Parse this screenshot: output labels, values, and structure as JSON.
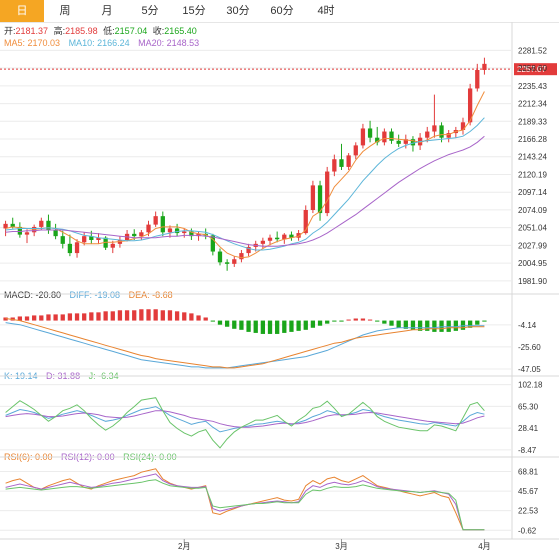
{
  "tabs": [
    {
      "label": "日",
      "active": true
    },
    {
      "label": "周",
      "active": false
    },
    {
      "label": "月",
      "active": false
    },
    {
      "label": "5分",
      "active": false
    },
    {
      "label": "15分",
      "active": false
    },
    {
      "label": "30分",
      "active": false
    },
    {
      "label": "60分",
      "active": false
    },
    {
      "label": "4时",
      "active": false
    }
  ],
  "colors": {
    "up": "#e23b3b",
    "down": "#1aa51a",
    "ma5": "#f08d3c",
    "ma10": "#5db6d9",
    "ma20": "#a865c9",
    "dif": "#5aa8d8",
    "dea": "#e8832f",
    "grid": "#ececec",
    "text": "#333333"
  },
  "ohlc": {
    "open_label": "开:",
    "open": "2181.37",
    "high_label": "高:",
    "high": "2185.98",
    "low_label": "低:",
    "low": "2157.04",
    "close_label": "收:",
    "close": "2165.40"
  },
  "ma": {
    "ma5_label": "MA5: 2170.03",
    "ma10_label": "MA10: 2166.24",
    "ma20_label": "MA20: 2148.53"
  },
  "macd_legend": {
    "macd": "MACD: -20.80",
    "dif": "DIFF: -19.08",
    "dea": "DEA: -8.68"
  },
  "kdj_legend": {
    "k": "K: 19.14",
    "d": "D: 31.88",
    "j": "J: -6.34"
  },
  "rsi_legend": {
    "rsi6": "RSI(6): 0.00",
    "rsi12": "RSI(12): 0.00",
    "rsi24": "RSI(24): 0.00"
  },
  "current_price": "2257.07",
  "chart_data": [
    {
      "type": "candlestick",
      "name": "price",
      "ylim": [
        1970,
        2295
      ],
      "yticks": [
        "2281.52",
        "2258.60",
        "2235.43",
        "2212.34",
        "2189.33",
        "2166.28",
        "2143.24",
        "2120.19",
        "2097.14",
        "2074.09",
        "2051.04",
        "2027.99",
        "2004.95",
        "1981.90"
      ],
      "xticks": [
        "2月",
        "3月",
        "4月"
      ],
      "candles": [
        [
          2050,
          2060,
          2040,
          2056
        ],
        [
          2056,
          2064,
          2050,
          2052
        ],
        [
          2052,
          2058,
          2038,
          2042
        ],
        [
          2042,
          2049,
          2031,
          2045
        ],
        [
          2045,
          2055,
          2040,
          2052
        ],
        [
          2052,
          2064,
          2048,
          2060
        ],
        [
          2060,
          2068,
          2043,
          2048
        ],
        [
          2048,
          2056,
          2036,
          2040
        ],
        [
          2040,
          2047,
          2024,
          2030
        ],
        [
          2030,
          2042,
          2014,
          2018
        ],
        [
          2018,
          2036,
          2012,
          2032
        ],
        [
          2032,
          2045,
          2028,
          2040
        ],
        [
          2040,
          2047,
          2030,
          2035
        ],
        [
          2035,
          2044,
          2030,
          2038
        ],
        [
          2038,
          2040,
          2022,
          2025
        ],
        [
          2025,
          2034,
          2018,
          2030
        ],
        [
          2030,
          2040,
          2025,
          2035
        ],
        [
          2035,
          2048,
          2033,
          2043
        ],
        [
          2043,
          2049,
          2035,
          2040
        ],
        [
          2040,
          2048,
          2035,
          2045
        ],
        [
          2045,
          2060,
          2040,
          2055
        ],
        [
          2055,
          2072,
          2052,
          2066
        ],
        [
          2066,
          2072,
          2040,
          2045
        ],
        [
          2045,
          2054,
          2038,
          2050
        ],
        [
          2050,
          2056,
          2040,
          2044
        ],
        [
          2044,
          2050,
          2038,
          2046
        ],
        [
          2046,
          2050,
          2035,
          2040
        ],
        [
          2040,
          2046,
          2034,
          2043
        ],
        [
          2043,
          2050,
          2036,
          2041
        ],
        [
          2041,
          2043,
          2015,
          2020
        ],
        [
          2020,
          2024,
          2002,
          2006
        ],
        [
          2006,
          2010,
          1995,
          2004
        ],
        [
          2004,
          2014,
          2000,
          2010
        ],
        [
          2010,
          2022,
          2006,
          2018
        ],
        [
          2018,
          2030,
          2014,
          2026
        ],
        [
          2026,
          2034,
          2020,
          2030
        ],
        [
          2030,
          2038,
          2024,
          2034
        ],
        [
          2034,
          2042,
          2028,
          2038
        ],
        [
          2038,
          2046,
          2032,
          2036
        ],
        [
          2036,
          2044,
          2030,
          2042
        ],
        [
          2042,
          2046,
          2034,
          2038
        ],
        [
          2038,
          2048,
          2034,
          2044
        ],
        [
          2044,
          2080,
          2042,
          2074
        ],
        [
          2074,
          2112,
          2070,
          2106
        ],
        [
          2106,
          2112,
          2060,
          2070
        ],
        [
          2070,
          2130,
          2066,
          2124
        ],
        [
          2124,
          2146,
          2118,
          2140
        ],
        [
          2140,
          2160,
          2126,
          2130
        ],
        [
          2130,
          2148,
          2126,
          2145
        ],
        [
          2145,
          2162,
          2140,
          2158
        ],
        [
          2158,
          2186,
          2154,
          2180
        ],
        [
          2180,
          2190,
          2162,
          2168
        ],
        [
          2168,
          2182,
          2158,
          2162
        ],
        [
          2162,
          2180,
          2158,
          2176
        ],
        [
          2176,
          2180,
          2160,
          2164
        ],
        [
          2164,
          2172,
          2156,
          2160
        ],
        [
          2160,
          2172,
          2154,
          2166
        ],
        [
          2166,
          2170,
          2150,
          2158
        ],
        [
          2158,
          2174,
          2152,
          2168
        ],
        [
          2168,
          2182,
          2162,
          2176
        ],
        [
          2176,
          2224,
          2168,
          2184
        ],
        [
          2184,
          2188,
          2162,
          2168
        ],
        [
          2168,
          2178,
          2162,
          2174
        ],
        [
          2174,
          2182,
          2168,
          2178
        ],
        [
          2178,
          2194,
          2172,
          2188
        ],
        [
          2188,
          2238,
          2184,
          2232
        ],
        [
          2232,
          2264,
          2228,
          2256
        ],
        [
          2256,
          2272,
          2250,
          2264
        ]
      ],
      "ma5": [
        2050,
        2052,
        2051,
        2050,
        2049,
        2050,
        2051,
        2050,
        2045,
        2040,
        2034,
        2030,
        2030,
        2030,
        2032,
        2032,
        2033,
        2034,
        2037,
        2039,
        2043,
        2050,
        2052,
        2052,
        2052,
        2050,
        2045,
        2043,
        2042,
        2036,
        2026,
        2018,
        2014,
        2012,
        2013,
        2018,
        2024,
        2029,
        2033,
        2036,
        2038,
        2040,
        2048,
        2066,
        2072,
        2086,
        2104,
        2114,
        2124,
        2139,
        2150,
        2157,
        2163,
        2167,
        2167,
        2166,
        2165,
        2164,
        2162,
        2165,
        2170,
        2172,
        2172,
        2176,
        2178,
        2190,
        2210,
        2228
      ],
      "ma10": [
        2048,
        2049,
        2050,
        2050,
        2050,
        2050,
        2051,
        2050,
        2049,
        2047,
        2044,
        2041,
        2040,
        2038,
        2037,
        2036,
        2035,
        2034,
        2034,
        2035,
        2037,
        2040,
        2042,
        2044,
        2046,
        2047,
        2047,
        2046,
        2045,
        2042,
        2038,
        2034,
        2030,
        2027,
        2024,
        2022,
        2022,
        2023,
        2025,
        2027,
        2030,
        2032,
        2036,
        2044,
        2050,
        2058,
        2068,
        2078,
        2088,
        2100,
        2112,
        2122,
        2132,
        2141,
        2148,
        2154,
        2158,
        2161,
        2163,
        2164,
        2165,
        2166,
        2167,
        2168,
        2170,
        2176,
        2184,
        2194
      ],
      "ma20": [
        2045,
        2046,
        2046,
        2047,
        2047,
        2048,
        2048,
        2048,
        2048,
        2047,
        2046,
        2045,
        2044,
        2043,
        2042,
        2041,
        2040,
        2039,
        2038,
        2038,
        2038,
        2038,
        2039,
        2040,
        2040,
        2041,
        2041,
        2041,
        2040,
        2039,
        2037,
        2035,
        2033,
        2031,
        2029,
        2028,
        2027,
        2027,
        2027,
        2028,
        2029,
        2030,
        2032,
        2035,
        2039,
        2044,
        2050,
        2056,
        2062,
        2068,
        2075,
        2082,
        2089,
        2096,
        2103,
        2110,
        2116,
        2122,
        2128,
        2133,
        2138,
        2142,
        2146,
        2149,
        2152,
        2156,
        2162,
        2170
      ]
    },
    {
      "type": "bar",
      "name": "MACD",
      "ylim": [
        -50,
        20
      ],
      "yticks": [
        "-4.14",
        "-25.60",
        "-47.05"
      ],
      "macd": [
        3,
        3,
        4,
        4,
        5,
        5,
        6,
        6,
        6,
        7,
        7,
        7,
        8,
        8,
        9,
        9,
        10,
        10,
        10,
        11,
        11,
        11,
        10,
        10,
        9,
        8,
        7,
        5,
        3,
        -1,
        -4,
        -6,
        -8,
        -9,
        -11,
        -12,
        -13,
        -13,
        -13,
        -12,
        -11,
        -10,
        -9,
        -7,
        -5,
        -3,
        -1,
        -1,
        1,
        2,
        2,
        1,
        -1,
        -3,
        -5,
        -7,
        -8,
        -9,
        -10,
        -10,
        -11,
        -11,
        -11,
        -10,
        -9,
        -7,
        -4,
        -1
      ],
      "dif": [
        -2,
        -3,
        -4,
        -6,
        -8,
        -10,
        -12,
        -14,
        -16,
        -18,
        -20,
        -22,
        -24,
        -26,
        -28,
        -30,
        -32,
        -34,
        -36,
        -38,
        -39,
        -40,
        -41,
        -42,
        -43,
        -44,
        -45,
        -45,
        -46,
        -46,
        -46,
        -46,
        -45,
        -44,
        -43,
        -42,
        -41,
        -40,
        -39,
        -38,
        -37,
        -36,
        -35,
        -33,
        -31,
        -29,
        -26,
        -23,
        -20,
        -17,
        -14,
        -12,
        -10,
        -9,
        -8,
        -7,
        -7,
        -7,
        -7,
        -7,
        -7,
        -6,
        -6,
        -6,
        -5,
        -5,
        -5,
        -5
      ],
      "dea": [
        2,
        1,
        0,
        -2,
        -4,
        -6,
        -8,
        -10,
        -12,
        -14,
        -16,
        -18,
        -20,
        -22,
        -24,
        -26,
        -28,
        -30,
        -32,
        -34,
        -35,
        -37,
        -38,
        -39,
        -40,
        -41,
        -42,
        -43,
        -44,
        -45,
        -45,
        -46,
        -46,
        -45,
        -44,
        -43,
        -42,
        -40,
        -38,
        -36,
        -34,
        -32,
        -30,
        -28,
        -26,
        -24,
        -22,
        -21,
        -19,
        -17,
        -16,
        -15,
        -14,
        -13,
        -12,
        -11,
        -10,
        -9,
        -9,
        -8,
        -8,
        -8,
        -7,
        -7,
        -7,
        -6,
        -6,
        -6
      ]
    },
    {
      "type": "line",
      "name": "KDJ",
      "ylim": [
        -12,
        110
      ],
      "yticks": [
        "102.18",
        "65.30",
        "28.41",
        "-8.47"
      ],
      "k": [
        50,
        55,
        60,
        58,
        55,
        50,
        45,
        48,
        52,
        55,
        58,
        55,
        50,
        45,
        40,
        42,
        45,
        50,
        55,
        60,
        62,
        65,
        58,
        50,
        45,
        40,
        35,
        38,
        40,
        30,
        22,
        25,
        28,
        30,
        32,
        35,
        36,
        38,
        40,
        38,
        35,
        38,
        42,
        48,
        52,
        58,
        55,
        50,
        52,
        55,
        60,
        58,
        52,
        48,
        45,
        42,
        40,
        38,
        36,
        35,
        38,
        36,
        34,
        32,
        40,
        50,
        55,
        52
      ],
      "d": [
        48,
        50,
        52,
        53,
        52,
        50,
        48,
        48,
        49,
        51,
        53,
        54,
        53,
        51,
        48,
        47,
        46,
        47,
        49,
        52,
        55,
        58,
        58,
        56,
        53,
        50,
        46,
        44,
        42,
        40,
        36,
        33,
        31,
        30,
        30,
        31,
        32,
        34,
        36,
        37,
        36,
        36,
        38,
        41,
        45,
        49,
        51,
        51,
        51,
        52,
        54,
        55,
        54,
        52,
        50,
        48,
        46,
        44,
        42,
        40,
        39,
        38,
        37,
        36,
        37,
        41,
        46,
        49
      ],
      "j": [
        55,
        65,
        75,
        68,
        60,
        50,
        40,
        48,
        58,
        62,
        68,
        58,
        45,
        34,
        25,
        32,
        42,
        55,
        65,
        76,
        78,
        80,
        58,
        38,
        28,
        20,
        15,
        22,
        26,
        8,
        -5,
        10,
        22,
        30,
        36,
        42,
        42,
        46,
        50,
        40,
        32,
        42,
        50,
        62,
        65,
        74,
        62,
        48,
        52,
        62,
        72,
        62,
        48,
        40,
        35,
        30,
        28,
        26,
        24,
        24,
        34,
        32,
        28,
        24,
        46,
        68,
        72,
        58
      ]
    },
    {
      "type": "line",
      "name": "RSI",
      "ylim": [
        -5,
        80
      ],
      "yticks": [
        "68.81",
        "45.67",
        "22.53",
        "-0.62"
      ],
      "rsi6": [
        55,
        58,
        60,
        55,
        50,
        48,
        52,
        55,
        58,
        60,
        55,
        50,
        48,
        52,
        55,
        58,
        60,
        62,
        64,
        68,
        70,
        72,
        60,
        55,
        52,
        50,
        48,
        50,
        52,
        20,
        18,
        22,
        25,
        28,
        30,
        32,
        34,
        36,
        38,
        35,
        34,
        36,
        52,
        58,
        54,
        60,
        62,
        58,
        56,
        60,
        64,
        58,
        52,
        50,
        48,
        46,
        44,
        42,
        40,
        42,
        44,
        40,
        38,
        20,
        0,
        0,
        0,
        0
      ],
      "rsi12": [
        50,
        52,
        54,
        52,
        50,
        48,
        50,
        52,
        54,
        56,
        54,
        52,
        50,
        51,
        53,
        55,
        56,
        58,
        60,
        62,
        64,
        66,
        58,
        54,
        52,
        51,
        50,
        50,
        51,
        25,
        22,
        24,
        26,
        28,
        30,
        31,
        32,
        33,
        34,
        33,
        32,
        33,
        46,
        52,
        50,
        54,
        56,
        54,
        53,
        55,
        58,
        55,
        51,
        49,
        48,
        47,
        46,
        45,
        44,
        45,
        46,
        44,
        42,
        30,
        0,
        0,
        0,
        0
      ],
      "rsi24": [
        48,
        49,
        50,
        49,
        48,
        47,
        48,
        49,
        50,
        51,
        51,
        50,
        49,
        50,
        51,
        52,
        53,
        54,
        55,
        56,
        58,
        59,
        55,
        52,
        51,
        50,
        49,
        49,
        50,
        28,
        26,
        27,
        28,
        29,
        30,
        31,
        31,
        32,
        33,
        32,
        32,
        32,
        42,
        47,
        46,
        49,
        51,
        50,
        50,
        51,
        53,
        51,
        49,
        48,
        47,
        46,
        45,
        45,
        44,
        45,
        45,
        44,
        43,
        35,
        0,
        0,
        0,
        0
      ]
    }
  ]
}
